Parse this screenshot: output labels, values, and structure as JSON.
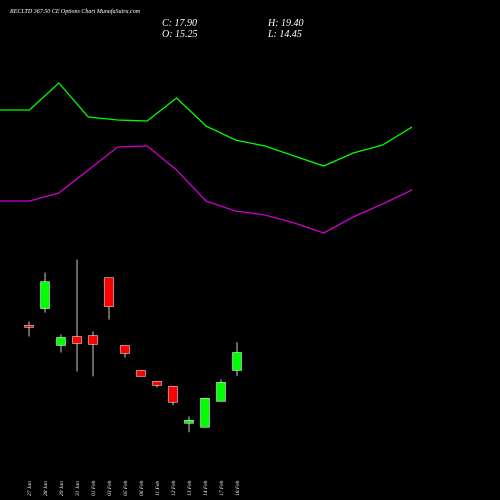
{
  "chart_data": [
    {
      "type": "candlestick",
      "title": "RECLTD 367.50 CE Options Chart MunafaSutra.com",
      "ohlc_labels": [
        "C: 17.90",
        "O: 15.25",
        "H: 19.40",
        "L: 14.45"
      ],
      "categories": [
        "27 Jan",
        "28 Jan",
        "29 Jan",
        "31 Jan",
        "01 Feb",
        "03 Feb",
        "05 Feb",
        "06 Feb",
        "11 Feb",
        "12 Feb",
        "13 Feb",
        "14 Feb",
        "17 Feb",
        "18 Feb"
      ],
      "open": [
        21.9,
        24.37,
        18.93,
        20.25,
        20.4,
        28.93,
        18.93,
        15.25,
        13.64,
        12.9,
        7.46,
        6.87,
        10.69,
        15.25
      ],
      "high": [
        22.46,
        29.66,
        20.55,
        31.58,
        20.99,
        28.93,
        18.93,
        15.25,
        13.64,
        12.9,
        8.49,
        11.14,
        13.93,
        19.4
      ],
      "low": [
        20.25,
        23.78,
        17.9,
        15.11,
        14.37,
        22.75,
        17.16,
        14.37,
        12.75,
        10.11,
        6.14,
        6.87,
        10.69,
        14.45
      ],
      "close": [
        21.6,
        28.34,
        20.11,
        19.22,
        19.08,
        24.66,
        17.75,
        14.37,
        13.05,
        10.55,
        7.9,
        11.14,
        13.49,
        17.9
      ],
      "up_color": "#00ff00",
      "down_color": "#ff0000",
      "ylim": [
        5,
        33
      ]
    },
    {
      "type": "line",
      "series": [
        {
          "color": "#00ff00",
          "values": [
            140,
            140,
            167,
            133,
            130,
            129,
            152,
            124,
            110,
            104,
            94,
            84,
            97,
            105,
            123
          ]
        },
        {
          "color": "#cc00cc",
          "values": [
            49,
            49,
            57,
            80,
            103,
            104,
            80,
            49,
            39,
            35,
            27,
            17,
            33,
            46,
            60
          ]
        }
      ],
      "ylim": [
        0,
        250
      ]
    }
  ]
}
